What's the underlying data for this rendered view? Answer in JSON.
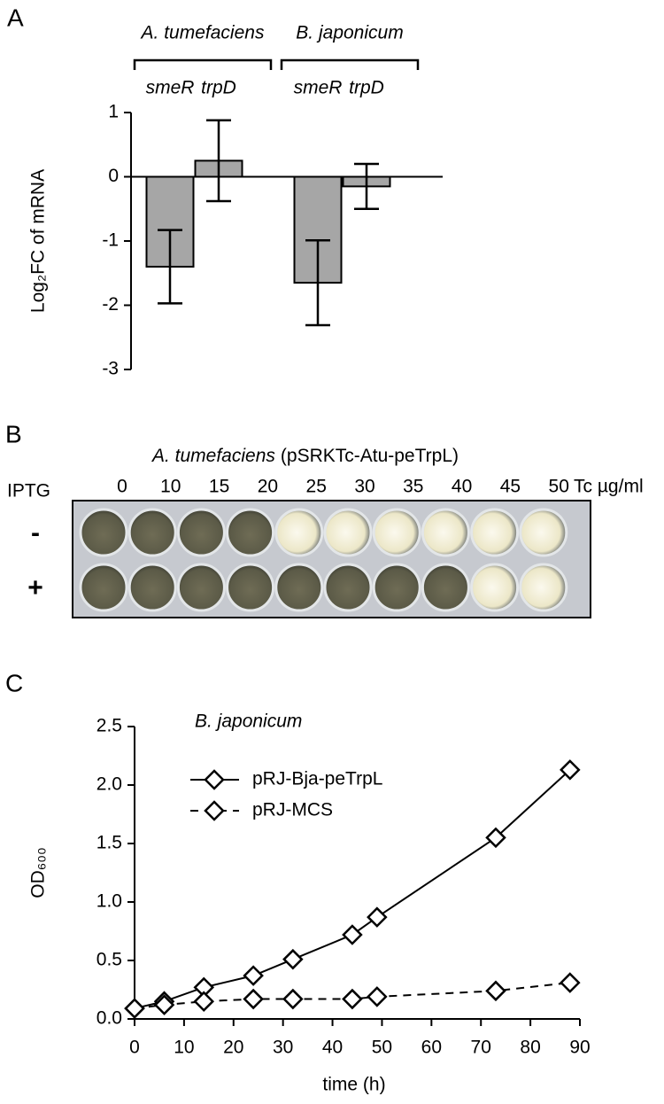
{
  "chart_data": [
    {
      "type": "bar",
      "panel": "A",
      "groups": [
        "A. tumefaciens",
        "B. japonicum"
      ],
      "categories": [
        "smeR",
        "trpD",
        "smeR",
        "trpD"
      ],
      "values": [
        -1.4,
        0.25,
        -1.65,
        -0.15
      ],
      "errors": [
        0.57,
        0.63,
        0.66,
        0.35
      ],
      "color": "#a6a6a6",
      "ylabel": "Log₂FC of mRNA",
      "ylim": [
        -3,
        1
      ],
      "yticks": [
        -3,
        -2,
        -1,
        0,
        1
      ]
    },
    {
      "type": "plate",
      "panel": "B",
      "organism": "A. tumefaciens",
      "plasmid": "(pSRKTc-Atu-peTrpL)",
      "columns": [
        0,
        10,
        15,
        20,
        25,
        30,
        35,
        40,
        45,
        50
      ],
      "column_unit": "Tc µg/ml",
      "row_title": "IPTG",
      "rows": [
        "-",
        "+"
      ]
    },
    {
      "type": "line",
      "panel": "C",
      "annotation": "B. japonicum",
      "x": [
        0,
        6,
        14,
        24,
        32,
        44,
        49,
        73,
        88
      ],
      "series": [
        {
          "name": "pRJ-Bja-peTrpL",
          "color": "#000000",
          "linestyle": "solid",
          "values": [
            0.09,
            0.15,
            0.27,
            0.37,
            0.51,
            0.72,
            0.87,
            1.55,
            2.13
          ]
        },
        {
          "name": "pRJ-MCS",
          "color": "#000000",
          "linestyle": "dashed",
          "values": [
            0.09,
            0.12,
            0.15,
            0.17,
            0.17,
            0.17,
            0.19,
            0.24,
            0.31
          ]
        }
      ],
      "xlabel": "time (h)",
      "ylabel": "OD₆₀₀",
      "xlim": [
        0,
        90
      ],
      "xticks": [
        0,
        10,
        20,
        30,
        40,
        50,
        60,
        70,
        80,
        90
      ],
      "ylim": [
        0,
        2.5
      ],
      "yticks": [
        {
          "value": 0,
          "label": "0.0"
        },
        {
          "value": 0.5,
          "label": "0.5"
        },
        {
          "value": 1,
          "label": "1.0"
        },
        {
          "value": 1.5,
          "label": "1.5"
        },
        {
          "value": 2,
          "label": "2.0"
        },
        {
          "value": 2.5,
          "label": "2.5"
        }
      ],
      "legend": "upper left"
    }
  ]
}
